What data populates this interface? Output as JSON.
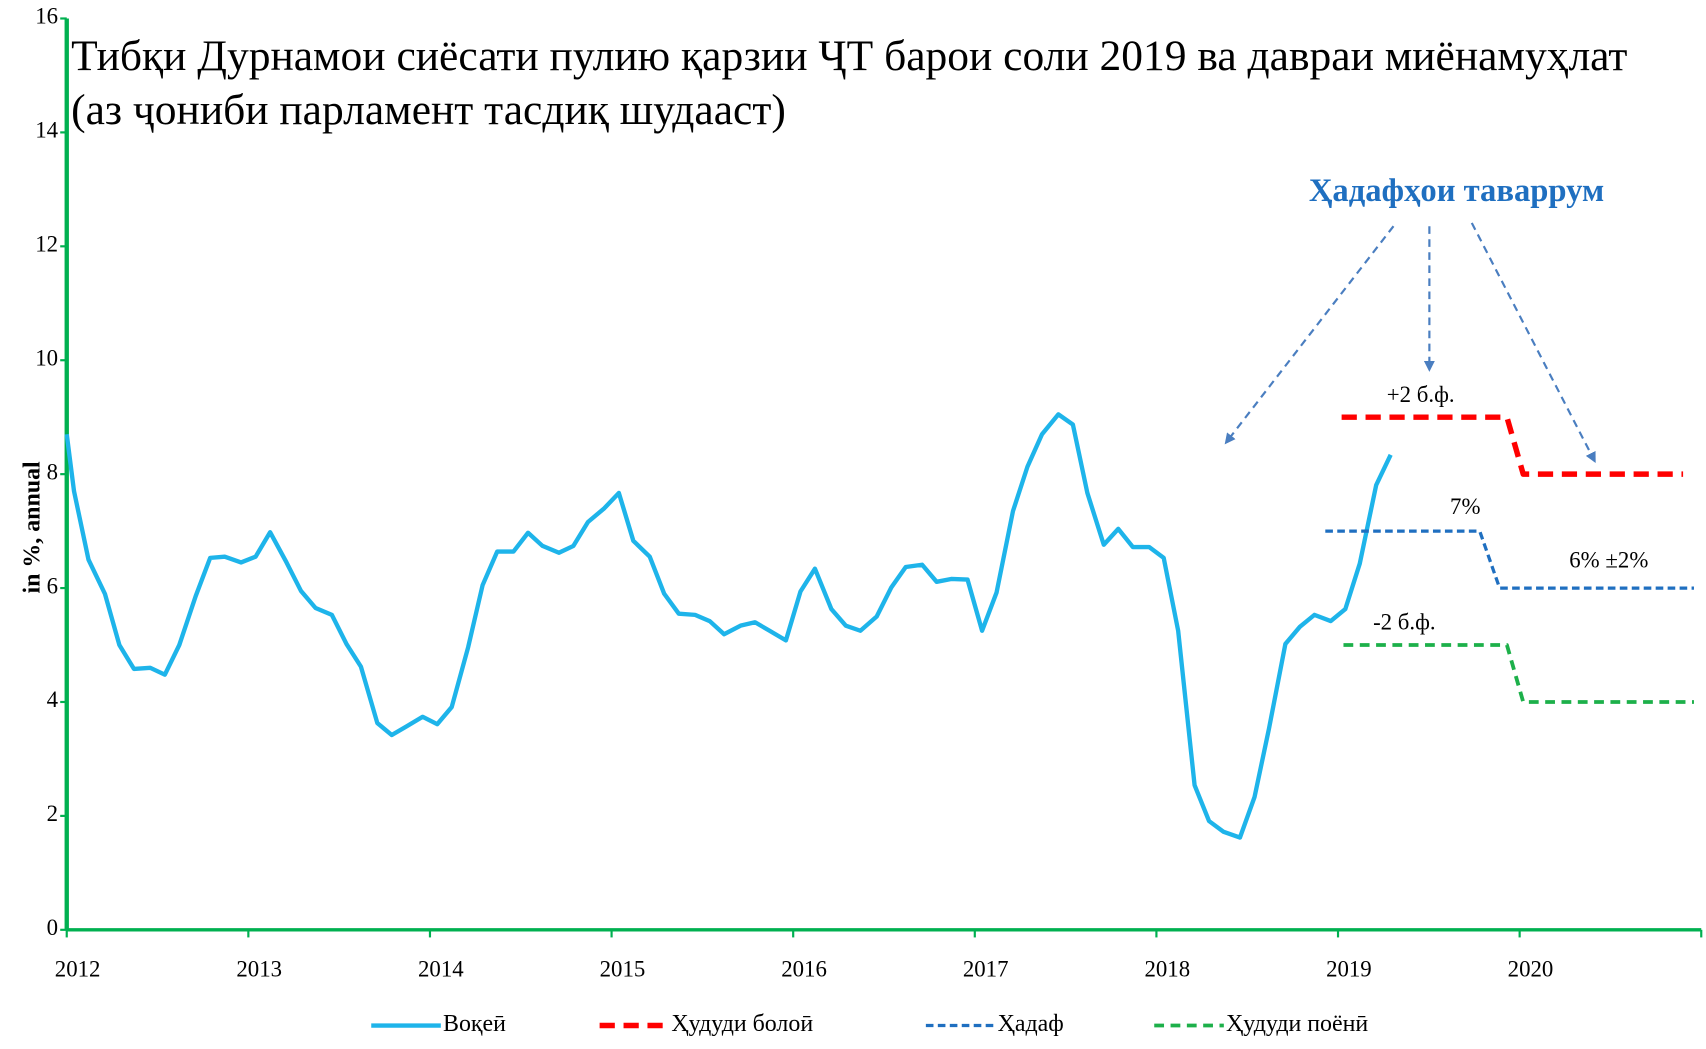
{
  "chart_data": {
    "type": "line",
    "title": "Тибқи Дурнамои сиёсати пулию қарзии ҶТ барои соли 2019 ва давраи миёнамуҳлат (аз ҷониби парламент тасдиқ шудааст)",
    "y_label": "in %, annual",
    "xlim": [
      2012,
      2021
    ],
    "xticks": [
      2012,
      2013,
      2014,
      2015,
      2016,
      2017,
      2018,
      2019,
      2020
    ],
    "ylim": [
      0,
      16
    ],
    "yticks": [
      0,
      2,
      4,
      6,
      8,
      10,
      12,
      14,
      16
    ],
    "annotations": [
      "Ҳадафҳои таваррум",
      "+2 б.ф.",
      "7%",
      "6% ±2%",
      "-2 б.ф."
    ],
    "series": [
      {
        "name": "Воқеӣ",
        "color": "#1eb4ea",
        "style": "solid",
        "x": [
          2012,
          2012.04,
          2012.12,
          2012.21,
          2012.29,
          2012.37,
          2012.46,
          2012.54,
          2012.62,
          2012.71,
          2012.79,
          2012.87,
          2012.96,
          2013.04,
          2013.12,
          2013.21,
          2013.29,
          2013.37,
          2013.46,
          2013.54,
          2013.62,
          2013.71,
          2013.79,
          2013.87,
          2013.96,
          2014.04,
          2014.12,
          2014.21,
          2014.29,
          2014.37,
          2014.46,
          2014.54,
          2014.62,
          2014.71,
          2014.79,
          2014.87,
          2014.96,
          2015.04,
          2015.12,
          2015.21,
          2015.29,
          2015.37,
          2015.46,
          2015.54,
          2015.62,
          2015.71,
          2015.79,
          2015.87,
          2015.96,
          2016.04,
          2016.12,
          2016.21,
          2016.29,
          2016.37,
          2016.46,
          2016.54,
          2016.62,
          2016.71,
          2016.79,
          2016.87,
          2016.96,
          2017.04,
          2017.12,
          2017.21,
          2017.29,
          2017.37,
          2017.46,
          2017.54,
          2017.62,
          2017.71,
          2017.79,
          2017.87,
          2017.96,
          2018.04,
          2018.12,
          2018.21,
          2018.29,
          2018.37,
          2018.46,
          2018.54,
          2018.62,
          2018.71,
          2018.79,
          2018.87,
          2018.96,
          2019.04,
          2019.12,
          2019.21,
          2019.29
        ],
        "values": [
          8.7,
          7.7,
          6.5,
          5.9,
          5.0,
          4.58,
          4.6,
          4.48,
          5.0,
          5.86,
          6.53,
          6.55,
          6.45,
          6.55,
          6.98,
          6.45,
          5.95,
          5.65,
          5.53,
          5.02,
          4.62,
          3.63,
          3.42,
          3.57,
          3.74,
          3.61,
          3.91,
          4.96,
          6.05,
          6.64,
          6.64,
          6.97,
          6.74,
          6.62,
          6.74,
          7.16,
          7.4,
          7.67,
          6.83,
          6.55,
          5.9,
          5.55,
          5.53,
          5.42,
          5.19,
          5.34,
          5.4,
          5.25,
          5.08,
          5.94,
          6.34,
          5.63,
          5.34,
          5.25,
          5.5,
          6.01,
          6.37,
          6.41,
          6.11,
          6.16,
          6.15,
          5.25,
          5.92,
          7.35,
          8.13,
          8.7,
          9.05,
          8.87,
          7.67,
          6.76,
          7.04,
          6.72,
          6.72,
          6.53,
          5.25,
          2.54,
          1.91,
          1.72,
          1.62,
          2.33,
          3.53,
          5.02,
          5.32,
          5.53,
          5.42,
          5.63,
          6.43,
          7.81,
          8.34
        ]
      },
      {
        "name": "Ҳудуди болоӣ",
        "color": "#ff0000",
        "style": "dash-thick",
        "x": [
          2019.02,
          2019.93,
          2020.02,
          2020.9
        ],
        "values": [
          9,
          9,
          8,
          8
        ]
      },
      {
        "name": "Ҳадаф",
        "color": "#1f6fc0",
        "style": "dash",
        "x": [
          2018.93,
          2019.78,
          2019.89,
          2020.96
        ],
        "values": [
          7,
          7,
          6,
          6
        ]
      },
      {
        "name": "Ҳудуди поёнӣ",
        "color": "#1db04a",
        "style": "dash-mid",
        "x": [
          2019.03,
          2019.93,
          2020.02,
          2020.96
        ],
        "values": [
          5,
          5,
          4,
          4
        ]
      }
    ]
  }
}
